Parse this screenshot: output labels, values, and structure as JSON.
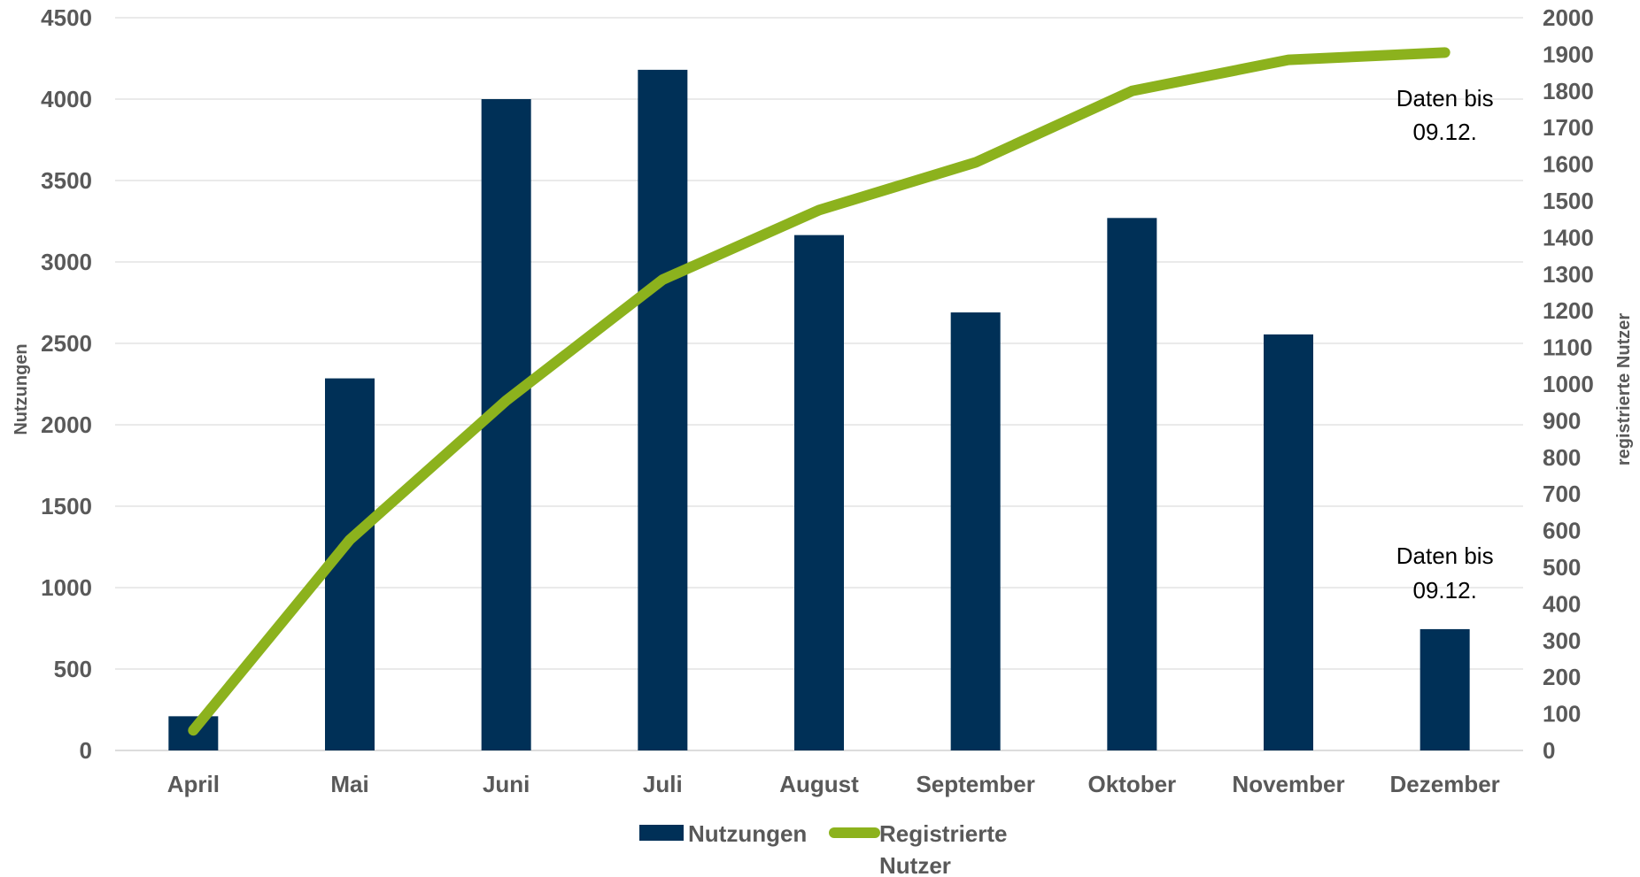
{
  "chart_data": {
    "type": "bar",
    "categories": [
      "April",
      "Mai",
      "Juni",
      "Juli",
      "August",
      "September",
      "Oktober",
      "November",
      "Dezember"
    ],
    "series": [
      {
        "name": "Nutzungen",
        "type": "bar",
        "axis": "left",
        "color": "#003057",
        "values": [
          210,
          2285,
          4000,
          4180,
          3165,
          2690,
          3270,
          2555,
          745
        ]
      },
      {
        "name_lines": [
          "Registrierte",
          "Nutzer"
        ],
        "name": "Registrierte Nutzer",
        "type": "line",
        "axis": "right",
        "color": "#8cb21d",
        "values": [
          55,
          575,
          955,
          1285,
          1475,
          1605,
          1800,
          1885,
          1905
        ]
      }
    ],
    "ylabel": "Nutzungen",
    "y2label": "registrierte Nutzer",
    "ylim": [
      0,
      4500
    ],
    "y2lim": [
      0,
      2000
    ],
    "yticks": [
      "0",
      "500",
      "1000",
      "1500",
      "2000",
      "2500",
      "3000",
      "3500",
      "4000",
      "4500"
    ],
    "y2ticks": [
      "0",
      "100",
      "200",
      "300",
      "400",
      "500",
      "600",
      "700",
      "800",
      "900",
      "1000",
      "1100",
      "1200",
      "1300",
      "1400",
      "1500",
      "1600",
      "1700",
      "1800",
      "1900",
      "2000"
    ],
    "grid": true,
    "legend_position": "bottom",
    "annotations": [
      {
        "lines": [
          "Daten bis",
          "09.12."
        ],
        "category": "Dezember",
        "anchor_series": "Registrierte Nutzer",
        "anchor_value": 1905
      },
      {
        "lines": [
          "Daten bis",
          "09.12."
        ],
        "category": "Dezember",
        "anchor_series": "Nutzungen",
        "anchor_value": 745
      }
    ]
  }
}
